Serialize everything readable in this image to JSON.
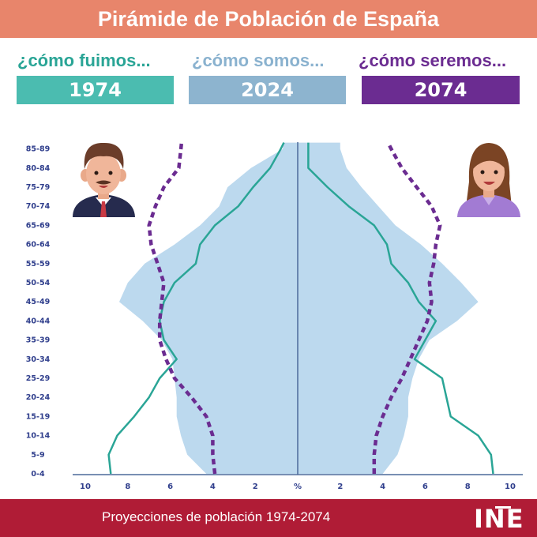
{
  "header": {
    "title": "Pirámide de Población de España"
  },
  "legend": [
    {
      "question": "¿cómo fuimos...",
      "year": "1974",
      "color": "#4bbcb0",
      "text_color": "#2aa596"
    },
    {
      "question": "¿cómo somos...",
      "year": "2024",
      "color": "#8db4cf",
      "text_color": "#8ab2cf"
    },
    {
      "question": "¿cómo seremos...",
      "year": "2074",
      "color": "#6b2c91",
      "text_color": "#6b2c91"
    }
  ],
  "icons": {
    "male": "man-avatar-icon",
    "female": "woman-avatar-icon"
  },
  "chart_data": {
    "type": "area",
    "age_groups": [
      "0-4",
      "5-9",
      "10-14",
      "15-19",
      "20-24",
      "25-29",
      "30-34",
      "35-39",
      "40-44",
      "45-49",
      "50-54",
      "55-59",
      "60-64",
      "65-69",
      "70-74",
      "75-79",
      "80-84",
      "85-89"
    ],
    "x_ticks": [
      "10",
      "8",
      "6",
      "4",
      "2",
      "%",
      "2",
      "4",
      "6",
      "8",
      "10"
    ],
    "xlim": [
      -11,
      11
    ],
    "series": [
      {
        "name": "1974",
        "style": "line",
        "color": "#2aa596",
        "male": [
          8.8,
          8.9,
          8.5,
          7.7,
          7.0,
          6.5,
          5.7,
          6.3,
          6.5,
          6.3,
          5.8,
          4.8,
          4.6,
          3.9,
          2.8,
          2.1,
          1.3,
          0.8
        ],
        "female": [
          9.2,
          9.1,
          8.5,
          7.2,
          7.0,
          6.8,
          5.5,
          6.0,
          6.5,
          5.7,
          5.2,
          4.4,
          4.2,
          3.6,
          2.4,
          1.4,
          0.5,
          0.5
        ]
      },
      {
        "name": "2024",
        "style": "area",
        "color": "#bcd9ee",
        "male": [
          4.3,
          5.2,
          5.5,
          5.7,
          5.7,
          5.8,
          5.9,
          6.4,
          7.3,
          8.4,
          8.0,
          7.2,
          5.8,
          4.6,
          3.7,
          3.3,
          2.2,
          0.7
        ],
        "female": [
          4.0,
          4.7,
          5.0,
          5.2,
          5.2,
          5.4,
          5.7,
          6.2,
          7.5,
          8.5,
          7.7,
          6.8,
          5.8,
          4.6,
          3.8,
          3.0,
          2.3,
          2.0
        ]
      },
      {
        "name": "2074",
        "style": "dashed",
        "color": "#6b2c91",
        "male": [
          3.9,
          4.0,
          4.0,
          4.3,
          5.0,
          5.8,
          6.2,
          6.5,
          6.5,
          6.4,
          6.3,
          6.6,
          6.9,
          7.0,
          6.7,
          6.3,
          5.6,
          5.5
        ],
        "female": [
          3.6,
          3.6,
          3.7,
          4.0,
          4.4,
          4.9,
          5.3,
          5.7,
          6.1,
          6.3,
          6.2,
          6.4,
          6.5,
          6.7,
          6.3,
          5.6,
          4.9,
          4.4
        ]
      }
    ]
  },
  "footer": {
    "text": "Proyecciones de población 1974-2074",
    "logo": "INE"
  }
}
